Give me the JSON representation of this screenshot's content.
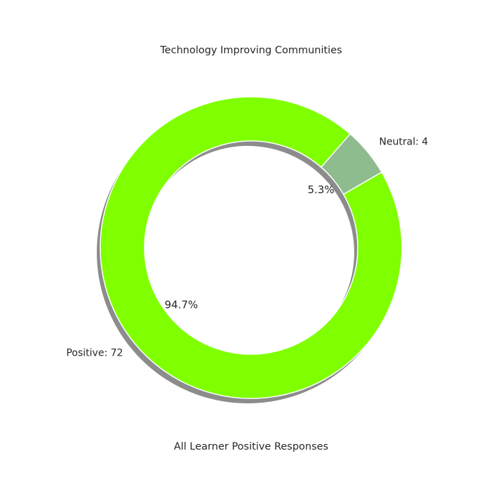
{
  "chart_data": {
    "type": "pie",
    "style": "donut",
    "title": "Technology Improving Communities",
    "xlabel": "All Learner Positive Responses",
    "slices": [
      {
        "label": "Neutral: 4",
        "name": "Neutral",
        "value": 4,
        "percent": "5.3%",
        "color": "#8fbc8f"
      },
      {
        "label": "Positive: 72",
        "name": "Positive",
        "value": 72,
        "percent": "94.7%",
        "color": "#7fff00"
      }
    ],
    "shadow": true,
    "legend": "none"
  }
}
